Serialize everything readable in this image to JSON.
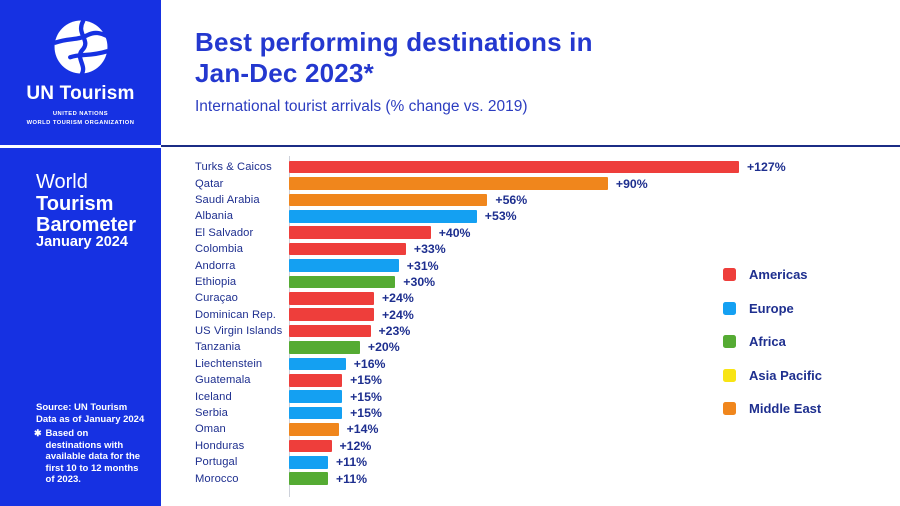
{
  "brand": {
    "name": "UN Tourism",
    "org_line1": "UNITED NATIONS",
    "org_line2": "WORLD TOURISM ORGANIZATION"
  },
  "sidebar": {
    "report_line1": "World",
    "report_line2": "Tourism",
    "report_line3": "Barometer",
    "issue": "January 2024",
    "source_line1": "Source: UN Tourism",
    "source_line2": "Data as of January 2024",
    "footnote_star": "✱",
    "footnote": "Based on destinations with available data for the first 10 to 12 months of 2023."
  },
  "header": {
    "title_line1": "Best performing destinations in",
    "title_line2": "Jan-Dec 2023*",
    "subtitle": "International tourist arrivals (% change vs. 2019)"
  },
  "colors": {
    "brand_blue": "#1631E2",
    "navy_text": "#1E2F8F",
    "title_blue": "#2438CF",
    "rule_navy": "#1B2C85"
  },
  "chart_data": {
    "type": "bar",
    "orientation": "horizontal",
    "title": "Best performing destinations in Jan-Dec 2023*",
    "xlabel": "International tourist arrivals (% change vs. 2019)",
    "xlim": [
      0,
      127
    ],
    "grid": false,
    "legend_position": "right",
    "legend": [
      {
        "label": "Americas",
        "color": "#EE3E3B"
      },
      {
        "label": "Europe",
        "color": "#14A0F2"
      },
      {
        "label": "Africa",
        "color": "#55AB33"
      },
      {
        "label": "Asia Pacific",
        "color": "#F8E414"
      },
      {
        "label": "Middle East",
        "color": "#F0861C"
      }
    ],
    "items": [
      {
        "label": "Turks & Caicos",
        "region": "Americas",
        "value": 127,
        "display": "+127%"
      },
      {
        "label": "Qatar",
        "region": "Middle East",
        "value": 90,
        "display": "+90%"
      },
      {
        "label": "Saudi Arabia",
        "region": "Middle East",
        "value": 56,
        "display": "+56%"
      },
      {
        "label": "Albania",
        "region": "Europe",
        "value": 53,
        "display": "+53%"
      },
      {
        "label": "El Salvador",
        "region": "Americas",
        "value": 40,
        "display": "+40%"
      },
      {
        "label": "Colombia",
        "region": "Americas",
        "value": 33,
        "display": "+33%"
      },
      {
        "label": "Andorra",
        "region": "Europe",
        "value": 31,
        "display": "+31%"
      },
      {
        "label": "Ethiopia",
        "region": "Africa",
        "value": 30,
        "display": "+30%"
      },
      {
        "label": "Curaçao",
        "region": "Americas",
        "value": 24,
        "display": "+24%"
      },
      {
        "label": "Dominican Rep.",
        "region": "Americas",
        "value": 24,
        "display": "+24%"
      },
      {
        "label": "US Virgin Islands",
        "region": "Americas",
        "value": 23,
        "display": "+23%"
      },
      {
        "label": "Tanzania",
        "region": "Africa",
        "value": 20,
        "display": "+20%"
      },
      {
        "label": "Liechtenstein",
        "region": "Europe",
        "value": 16,
        "display": "+16%"
      },
      {
        "label": "Guatemala",
        "region": "Americas",
        "value": 15,
        "display": "+15%"
      },
      {
        "label": "Iceland",
        "region": "Europe",
        "value": 15,
        "display": "+15%"
      },
      {
        "label": "Serbia",
        "region": "Europe",
        "value": 15,
        "display": "+15%"
      },
      {
        "label": "Oman",
        "region": "Middle East",
        "value": 14,
        "display": "+14%"
      },
      {
        "label": "Honduras",
        "region": "Americas",
        "value": 12,
        "display": "+12%"
      },
      {
        "label": "Portugal",
        "region": "Europe",
        "value": 11,
        "display": "+11%"
      },
      {
        "label": "Morocco",
        "region": "Africa",
        "value": 11,
        "display": "+11%"
      }
    ]
  }
}
